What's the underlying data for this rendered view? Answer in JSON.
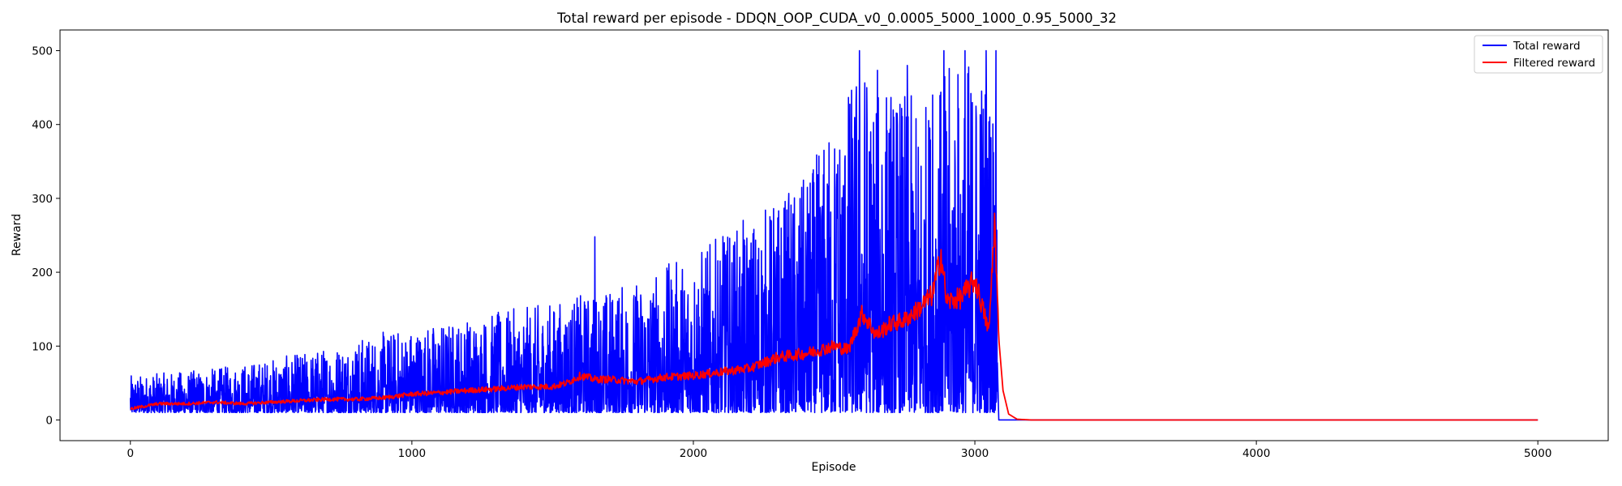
{
  "chart_data": {
    "type": "line",
    "title": "Total reward per episode - DDQN_OOP_CUDA_v0_0.0005_5000_1000_0.95_5000_32",
    "xlabel": "Episode",
    "ylabel": "Reward",
    "xlim": [
      -250,
      5250
    ],
    "ylim": [
      -28,
      528
    ],
    "xticks": [
      0,
      1000,
      2000,
      3000,
      4000,
      5000
    ],
    "yticks": [
      0,
      100,
      200,
      300,
      400,
      500
    ],
    "grid": false,
    "legend_position": "upper-right",
    "series": [
      {
        "name": "Total reward",
        "color": "#0000ff",
        "description": "noisy per-episode reward",
        "envelope_x": [
          0,
          300,
          600,
          900,
          1200,
          1500,
          1800,
          2100,
          2400,
          2600,
          2800,
          2950,
          3080,
          3085,
          5000
        ],
        "envelope_max": [
          60,
          70,
          90,
          120,
          140,
          160,
          190,
          250,
          330,
          500,
          430,
          500,
          500,
          0,
          0
        ],
        "envelope_min": [
          10,
          10,
          10,
          10,
          10,
          10,
          10,
          10,
          10,
          10,
          10,
          10,
          10,
          0,
          0
        ],
        "peaks": [
          [
            1650,
            248
          ],
          [
            2110,
            240
          ],
          [
            2390,
            230
          ],
          [
            2510,
            320
          ],
          [
            2590,
            500
          ],
          [
            2630,
            390
          ],
          [
            2670,
            345
          ],
          [
            2760,
            480
          ],
          [
            2850,
            440
          ],
          [
            2890,
            500
          ],
          [
            2965,
            500
          ],
          [
            3040,
            500
          ],
          [
            3075,
            500
          ]
        ]
      },
      {
        "name": "Filtered reward",
        "color": "#ff0000",
        "description": "smoothed reward",
        "x": [
          0,
          100,
          200,
          300,
          400,
          500,
          600,
          700,
          800,
          900,
          1000,
          1100,
          1200,
          1300,
          1400,
          1500,
          1550,
          1600,
          1650,
          1700,
          1800,
          1900,
          2000,
          2100,
          2200,
          2300,
          2400,
          2500,
          2550,
          2600,
          2650,
          2700,
          2750,
          2800,
          2850,
          2880,
          2900,
          2950,
          3000,
          3050,
          3070,
          3085,
          3100,
          3120,
          3150,
          3200,
          5000
        ],
        "y": [
          15,
          22,
          22,
          24,
          22,
          24,
          26,
          28,
          28,
          30,
          35,
          37,
          40,
          42,
          45,
          45,
          50,
          60,
          55,
          55,
          52,
          58,
          60,
          65,
          70,
          85,
          90,
          100,
          95,
          145,
          115,
          130,
          135,
          150,
          170,
          225,
          160,
          165,
          190,
          120,
          270,
          110,
          40,
          8,
          1,
          0,
          0
        ]
      }
    ]
  }
}
